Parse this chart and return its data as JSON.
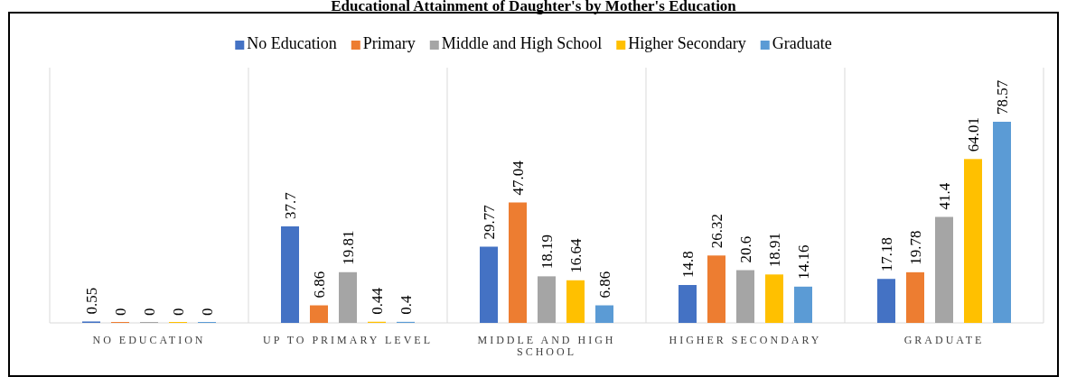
{
  "chart_data": {
    "type": "bar",
    "title": "Educational Attainment of Daughter's by Mother's Education",
    "categories": [
      "NO EDUCATION",
      "UP TO PRIMARY LEVEL",
      "MIDDLE AND HIGH SCHOOL",
      "HIGHER SECONDARY",
      "GRADUATE"
    ],
    "series": [
      {
        "name": "No Education",
        "color": "#4472c4",
        "values": [
          0.55,
          37.7,
          29.77,
          14.8,
          17.18
        ]
      },
      {
        "name": "Primary",
        "color": "#ed7d31",
        "values": [
          0,
          6.86,
          47.04,
          26.32,
          19.78
        ]
      },
      {
        "name": "Middle and High School",
        "color": "#a5a5a5",
        "values": [
          0,
          19.81,
          18.19,
          20.6,
          41.4
        ]
      },
      {
        "name": "Higher Secondary",
        "color": "#ffc000",
        "values": [
          0,
          0.44,
          16.64,
          18.91,
          64.01
        ]
      },
      {
        "name": "Graduate",
        "color": "#5b9bd5",
        "values": [
          0,
          0.4,
          6.86,
          14.16,
          78.57
        ]
      }
    ],
    "data_labels": true,
    "grid": "x",
    "legend": "top"
  }
}
